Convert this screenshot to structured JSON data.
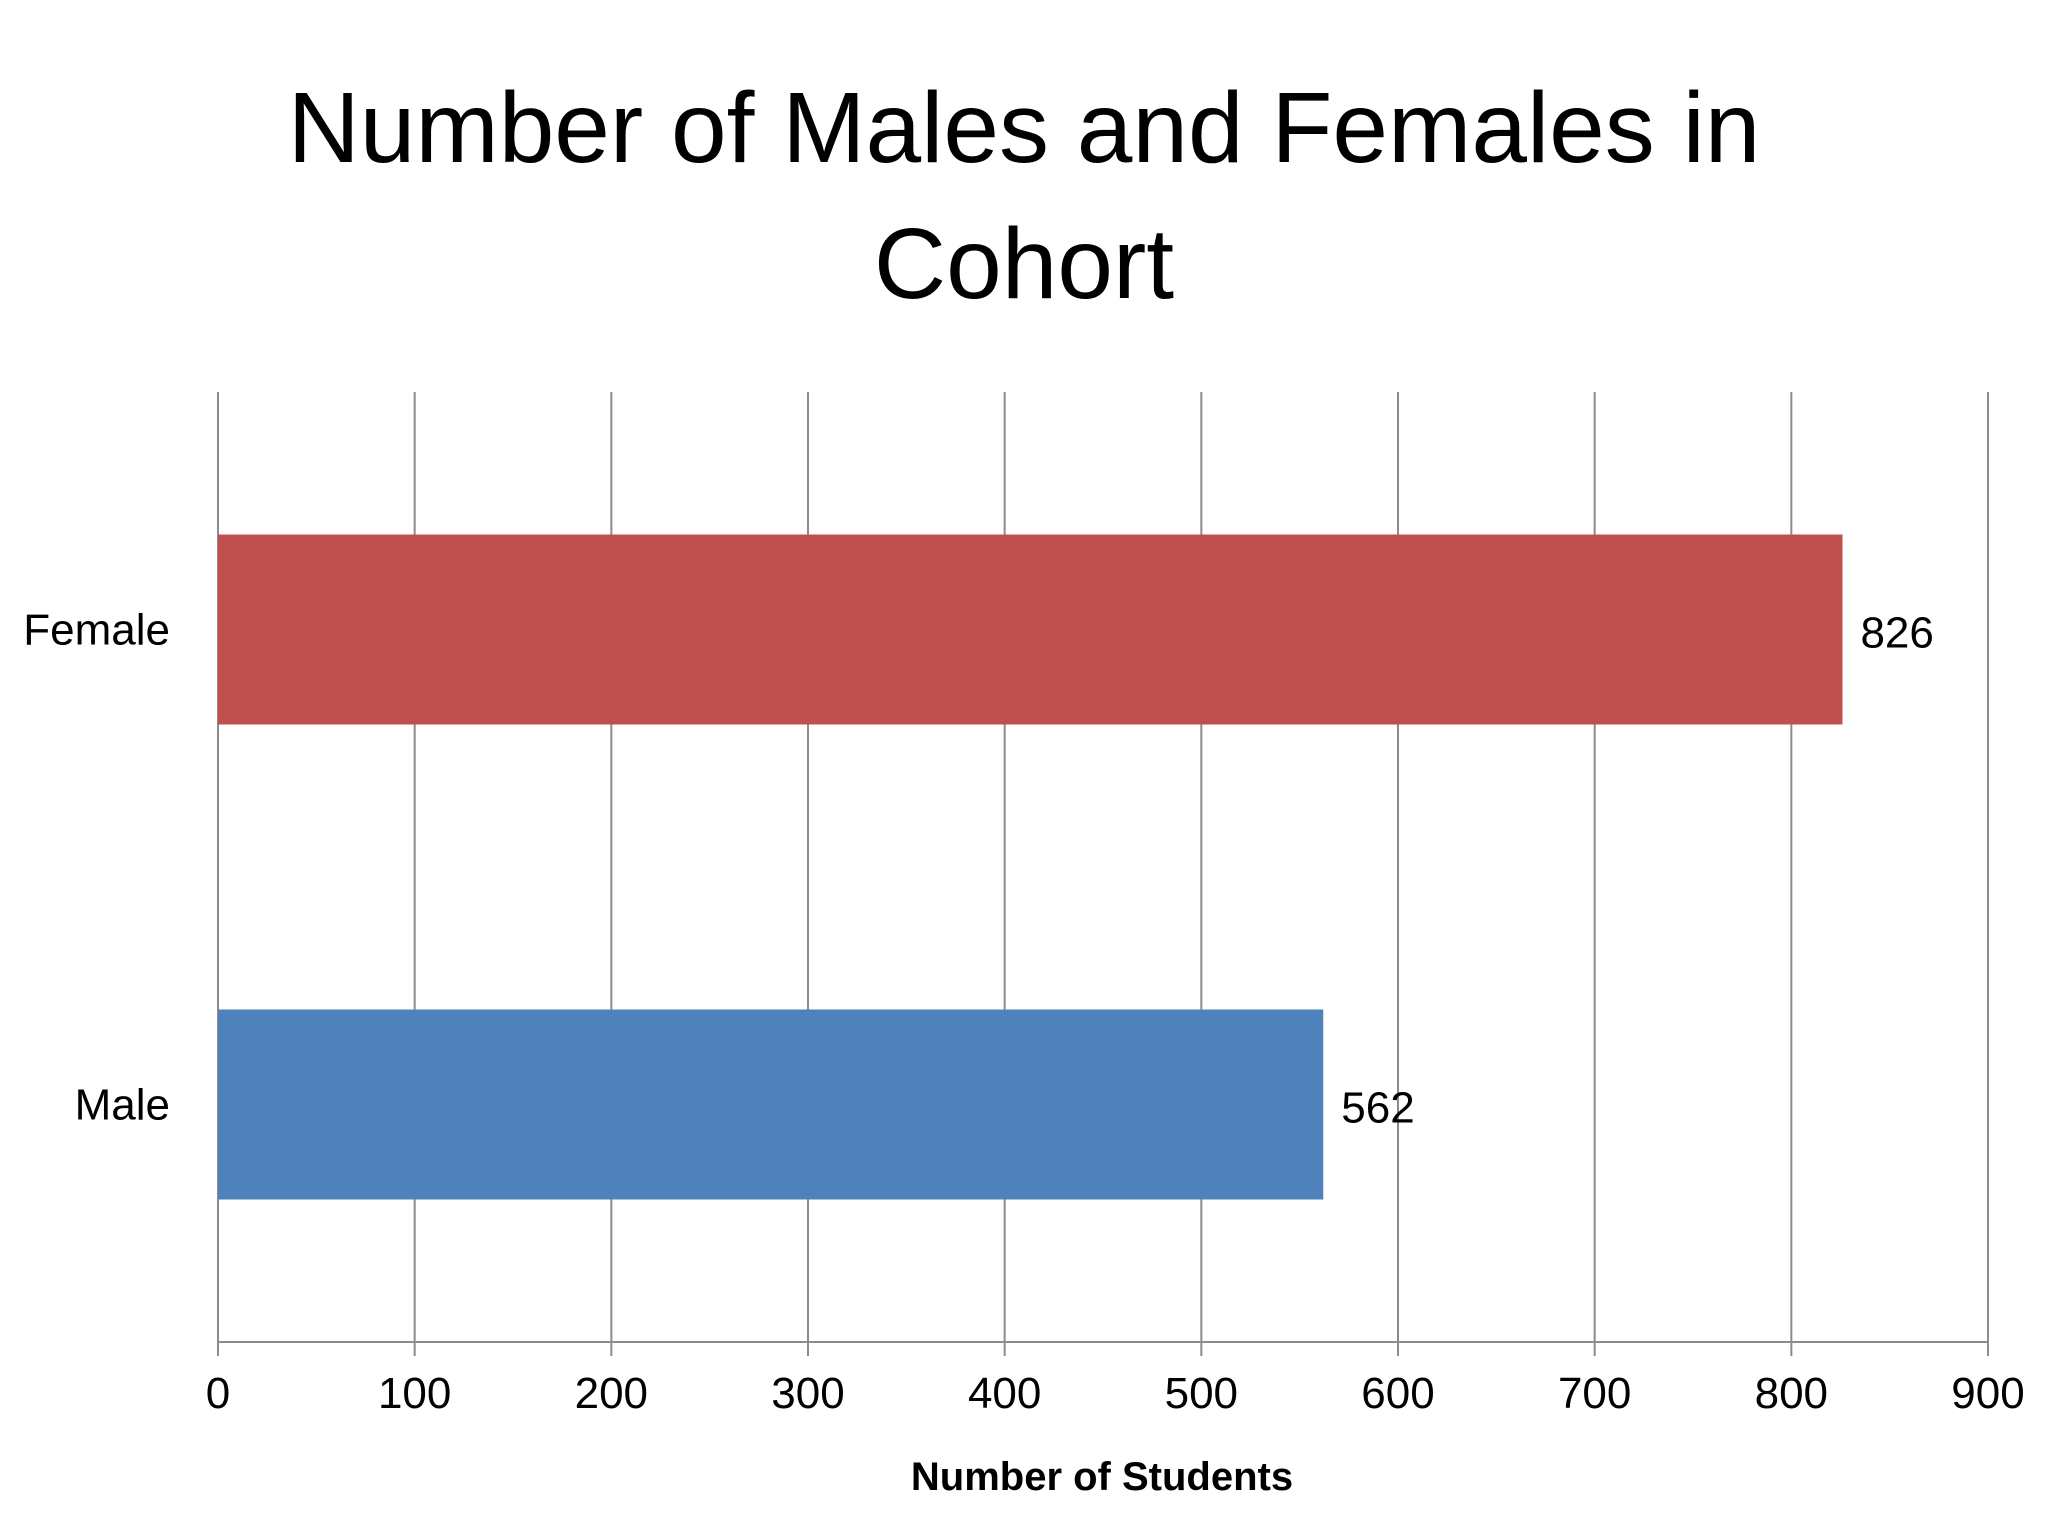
{
  "chart_data": {
    "type": "bar",
    "orientation": "horizontal",
    "title_lines": [
      "Number of Males and Females in",
      "Cohort"
    ],
    "categories": [
      "Female",
      "Male"
    ],
    "values": [
      826,
      562
    ],
    "colors": [
      "#c0504d",
      "#4f81bd"
    ],
    "data_labels": [
      "826",
      "562"
    ],
    "xlabel": "Number of Students",
    "ylabel": "",
    "xlim": [
      0,
      900
    ],
    "xticks": [
      0,
      100,
      200,
      300,
      400,
      500,
      600,
      700,
      800,
      900
    ],
    "grid": "vertical",
    "legend": "none"
  }
}
